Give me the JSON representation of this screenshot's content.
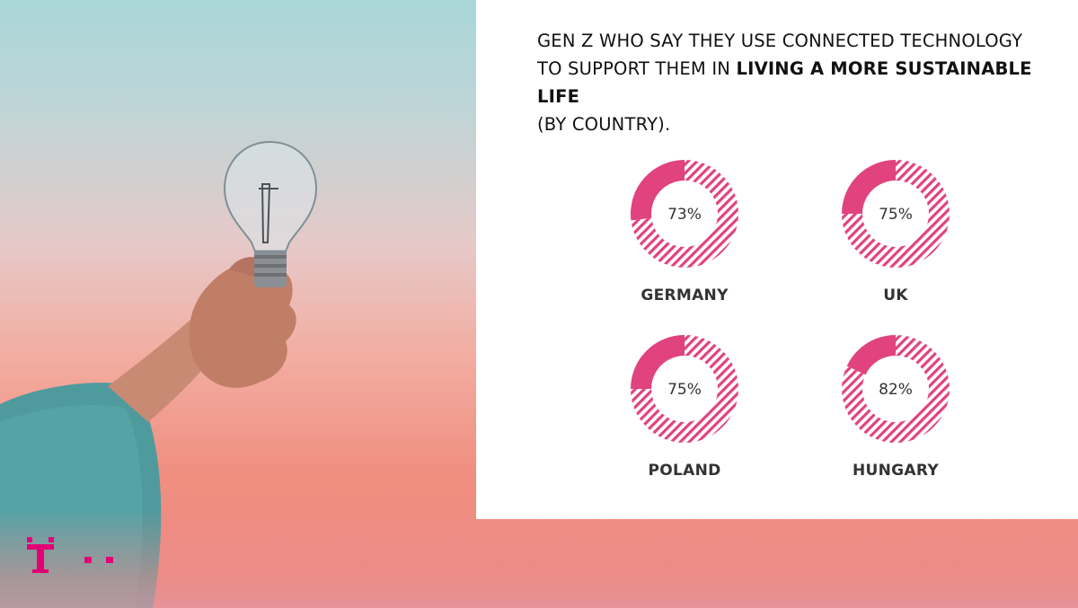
{
  "headline": {
    "line1": "GEN Z WHO SAY THEY USE CONNECTED TECHNOLOGY",
    "line2_pre": "TO SUPPORT THEM IN ",
    "line2_bold": "LIVING A MORE SUSTAINABLE LIFE",
    "line3": "(BY COUNTRY)."
  },
  "colors": {
    "accent": "#e0437e",
    "panel": "#ffffff"
  },
  "brand": {
    "logo_icon": "telekom-t-icon"
  },
  "chart_data": {
    "type": "pie",
    "subtype": "donut",
    "items": [
      {
        "country": "GERMANY",
        "value": 73,
        "label": "73%"
      },
      {
        "country": "UK",
        "value": 75,
        "label": "75%"
      },
      {
        "country": "POLAND",
        "value": 75,
        "label": "75%"
      },
      {
        "country": "HUNGARY",
        "value": 82,
        "label": "82%"
      }
    ]
  }
}
